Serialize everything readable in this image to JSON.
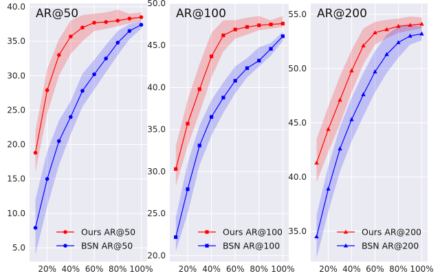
{
  "chart_data": [
    {
      "type": "line",
      "title": "AR@50",
      "x": [
        10,
        20,
        30,
        40,
        50,
        60,
        70,
        80,
        90,
        100
      ],
      "xtick_labels": [
        "20%",
        "40%",
        "60%",
        "80%",
        "100%"
      ],
      "xticks": [
        20,
        40,
        60,
        80,
        100
      ],
      "xlim": [
        5,
        105
      ],
      "ylim": [
        3.0,
        40.5
      ],
      "yticks": [
        5.0,
        10.0,
        15.0,
        20.0,
        25.0,
        30.0,
        35.0,
        40.0
      ],
      "ytick_labels": [
        "5.0",
        "10.0",
        "15.0",
        "20.0",
        "25.0",
        "30.0",
        "35.0",
        "40.0"
      ],
      "legend_position": "bottom-right",
      "series": [
        {
          "name": "Ours AR@50",
          "color": "#ff0000",
          "marker": "circle",
          "values": [
            18.8,
            27.9,
            33.0,
            35.7,
            37.0,
            37.7,
            37.8,
            38.0,
            38.3,
            38.5
          ],
          "lower": [
            16.0,
            24.5,
            30.0,
            33.2,
            35.0,
            36.5,
            36.8,
            37.2,
            37.6,
            38.0
          ],
          "upper": [
            22.0,
            31.0,
            35.3,
            38.0,
            38.8,
            39.0,
            39.2,
            39.6,
            39.0,
            39.2
          ]
        },
        {
          "name": "BSN AR@50",
          "color": "#0000ff",
          "marker": "circle",
          "values": [
            7.9,
            15.0,
            20.5,
            24.0,
            27.8,
            30.2,
            32.5,
            34.8,
            36.5,
            37.4
          ],
          "lower": [
            4.0,
            11.0,
            17.0,
            21.5,
            25.5,
            28.0,
            30.5,
            33.0,
            35.3,
            36.8
          ],
          "upper": [
            12.0,
            19.0,
            23.5,
            26.3,
            30.3,
            32.3,
            34.5,
            36.5,
            37.5,
            38.0
          ]
        }
      ]
    },
    {
      "type": "line",
      "title": "AR@100",
      "x": [
        10,
        20,
        30,
        40,
        50,
        60,
        70,
        80,
        90,
        100
      ],
      "xtick_labels": [
        "20%",
        "40%",
        "60%",
        "80%",
        "100%"
      ],
      "xticks": [
        20,
        40,
        60,
        80,
        100
      ],
      "xlim": [
        5,
        105
      ],
      "ylim": [
        19.3,
        50.0
      ],
      "yticks": [
        20.0,
        25.0,
        30.0,
        35.0,
        40.0,
        45.0,
        50.0
      ],
      "ytick_labels": [
        "20.0",
        "25.0",
        "30.0",
        "35.0",
        "40.0",
        "45.0",
        "50.0"
      ],
      "legend_position": "bottom-right",
      "series": [
        {
          "name": "Ours AR@100",
          "color": "#ff0000",
          "marker": "square",
          "values": [
            30.3,
            35.7,
            39.8,
            43.7,
            46.2,
            46.9,
            47.2,
            47.4,
            47.5,
            47.6
          ],
          "lower": [
            28.3,
            33.0,
            37.0,
            41.2,
            44.3,
            45.8,
            46.3,
            46.8,
            47.0,
            47.2
          ],
          "upper": [
            33.0,
            38.5,
            42.8,
            46.5,
            48.0,
            48.0,
            48.3,
            48.5,
            48.0,
            48.5
          ]
        },
        {
          "name": "BSN AR@100",
          "color": "#0000ff",
          "marker": "square",
          "values": [
            22.2,
            27.9,
            33.1,
            36.5,
            38.8,
            40.8,
            42.3,
            43.2,
            44.6,
            46.1
          ],
          "lower": [
            20.5,
            25.0,
            30.8,
            34.3,
            37.0,
            39.3,
            41.2,
            42.5,
            43.8,
            45.5
          ],
          "upper": [
            24.5,
            31.0,
            35.5,
            38.5,
            40.6,
            42.5,
            43.5,
            44.8,
            45.3,
            46.6
          ]
        }
      ]
    },
    {
      "type": "line",
      "title": "AR@200",
      "x": [
        10,
        20,
        30,
        40,
        50,
        60,
        70,
        80,
        90,
        100
      ],
      "xtick_labels": [
        "20%",
        "40%",
        "60%",
        "80%",
        "100%"
      ],
      "xticks": [
        20,
        40,
        60,
        80,
        100
      ],
      "xlim": [
        5,
        105
      ],
      "ylim": [
        32.2,
        56.0
      ],
      "yticks": [
        35.0,
        40.0,
        45.0,
        50.0,
        55.0
      ],
      "ytick_labels": [
        "35.0",
        "40.0",
        "45.0",
        "50.0",
        "55.0"
      ],
      "legend_position": "bottom-right",
      "series": [
        {
          "name": "Ours AR@200",
          "color": "#ff0000",
          "marker": "triangle",
          "values": [
            41.3,
            44.4,
            47.1,
            49.8,
            52.1,
            53.3,
            53.6,
            53.9,
            54.0,
            54.1
          ],
          "lower": [
            39.5,
            42.3,
            44.9,
            47.8,
            50.4,
            52.2,
            52.8,
            53.3,
            53.5,
            53.7
          ],
          "upper": [
            43.5,
            46.5,
            49.3,
            51.7,
            53.7,
            54.3,
            54.5,
            54.6,
            54.8,
            54.7
          ]
        },
        {
          "name": "BSN AR@200",
          "color": "#0000ff",
          "marker": "triangle",
          "values": [
            34.5,
            38.9,
            42.6,
            45.3,
            47.6,
            49.7,
            51.3,
            52.4,
            53.0,
            53.2
          ],
          "lower": [
            32.5,
            36.8,
            40.5,
            43.3,
            45.6,
            47.8,
            49.6,
            51.0,
            52.2,
            52.6
          ],
          "upper": [
            36.5,
            41.0,
            44.6,
            47.3,
            49.6,
            51.6,
            53.1,
            53.9,
            54.0,
            53.9
          ]
        }
      ]
    }
  ]
}
